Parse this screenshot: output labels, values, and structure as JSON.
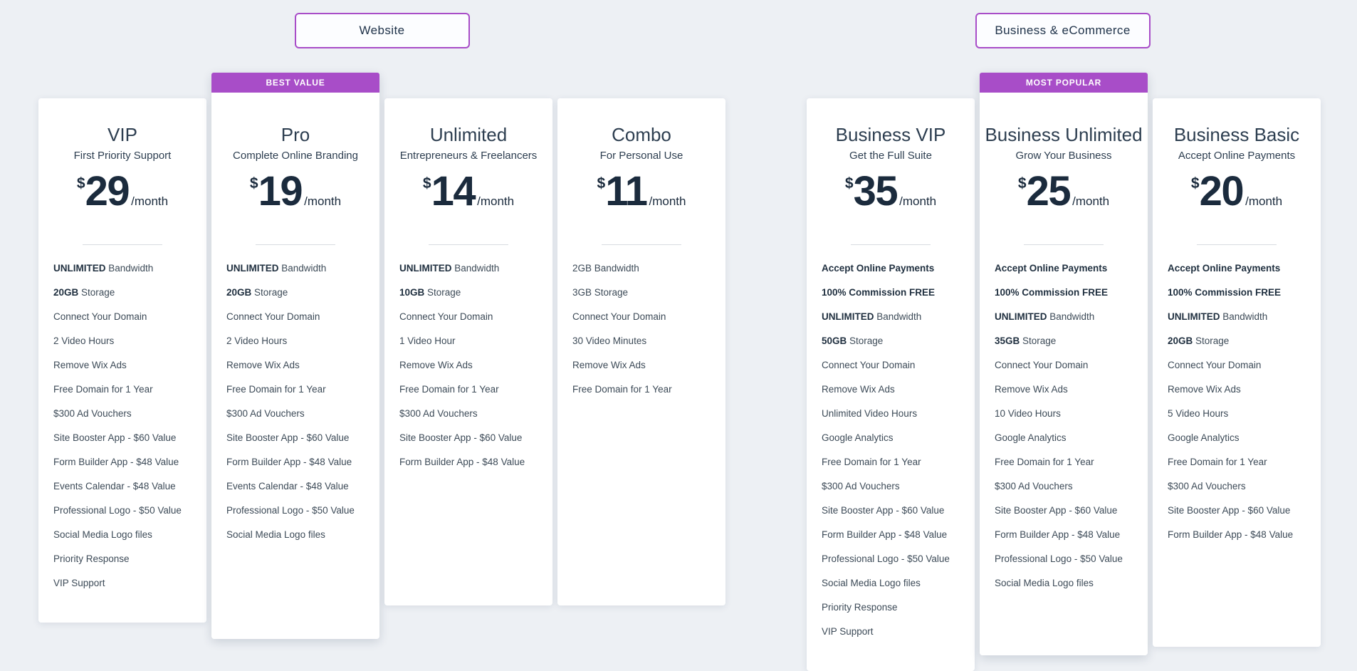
{
  "colors": {
    "accent_purple": "#a84dc8",
    "page_background": "#edf0f4",
    "card_background": "#ffffff",
    "heading_text": "#2d3e50",
    "price_text": "#1b2b3d",
    "feature_text": "#3c4a57",
    "badge_text": "#ffffff"
  },
  "groups": [
    {
      "tab_label": "Website",
      "plans": [
        {
          "name": "VIP",
          "tagline": "First Priority Support",
          "currency": "$",
          "price": "29",
          "period": "/month",
          "featured": false,
          "badge": "",
          "features": [
            {
              "b": "UNLIMITED",
              "t": " Bandwidth"
            },
            {
              "b": "20GB",
              "t": " Storage"
            },
            {
              "t": "Connect Your Domain"
            },
            {
              "t": "2 Video Hours"
            },
            {
              "t": "Remove Wix Ads"
            },
            {
              "t": "Free Domain for 1 Year"
            },
            {
              "t": "$300 Ad Vouchers"
            },
            {
              "t": "Site Booster App - $60 Value"
            },
            {
              "t": "Form Builder App - $48 Value"
            },
            {
              "t": "Events Calendar - $48 Value"
            },
            {
              "t": "Professional Logo - $50 Value"
            },
            {
              "t": "Social Media Logo files"
            },
            {
              "t": "Priority Response"
            },
            {
              "t": "VIP Support"
            }
          ]
        },
        {
          "name": "Pro",
          "tagline": "Complete Online Branding",
          "currency": "$",
          "price": "19",
          "period": "/month",
          "featured": true,
          "badge": "BEST VALUE",
          "features": [
            {
              "b": "UNLIMITED",
              "t": " Bandwidth"
            },
            {
              "b": "20GB",
              "t": " Storage"
            },
            {
              "t": "Connect Your Domain"
            },
            {
              "t": "2 Video Hours"
            },
            {
              "t": "Remove Wix Ads"
            },
            {
              "t": "Free Domain for 1 Year"
            },
            {
              "t": "$300 Ad Vouchers"
            },
            {
              "t": "Site Booster App - $60 Value"
            },
            {
              "t": "Form Builder App - $48 Value"
            },
            {
              "t": "Events Calendar - $48 Value"
            },
            {
              "t": "Professional Logo - $50 Value"
            },
            {
              "t": "Social Media Logo files"
            }
          ]
        },
        {
          "name": "Unlimited",
          "tagline": "Entrepreneurs & Freelancers",
          "currency": "$",
          "price": "14",
          "period": "/month",
          "featured": false,
          "badge": "",
          "features": [
            {
              "b": "UNLIMITED",
              "t": " Bandwidth"
            },
            {
              "b": "10GB",
              "t": " Storage"
            },
            {
              "t": "Connect Your Domain"
            },
            {
              "t": "1 Video Hour"
            },
            {
              "t": "Remove Wix Ads"
            },
            {
              "t": "Free Domain for 1 Year"
            },
            {
              "t": "$300 Ad Vouchers"
            },
            {
              "t": "Site Booster App - $60 Value"
            },
            {
              "t": "Form Builder App - $48 Value"
            }
          ]
        },
        {
          "name": "Combo",
          "tagline": "For Personal Use",
          "currency": "$",
          "price": "11",
          "period": "/month",
          "featured": false,
          "badge": "",
          "features": [
            {
              "t": "2GB Bandwidth"
            },
            {
              "t": "3GB Storage"
            },
            {
              "t": "Connect Your Domain"
            },
            {
              "t": "30 Video Minutes"
            },
            {
              "t": "Remove Wix Ads"
            },
            {
              "t": "Free Domain for 1 Year"
            }
          ]
        }
      ]
    },
    {
      "tab_label": "Business & eCommerce",
      "plans": [
        {
          "name": "Business VIP",
          "tagline": "Get the Full Suite",
          "currency": "$",
          "price": "35",
          "period": "/month",
          "featured": false,
          "badge": "",
          "features": [
            {
              "b": "Accept Online Payments",
              "t": ""
            },
            {
              "b": "100% Commission FREE",
              "t": ""
            },
            {
              "b": "UNLIMITED",
              "t": " Bandwidth"
            },
            {
              "b": "50GB",
              "t": " Storage"
            },
            {
              "t": "Connect Your Domain"
            },
            {
              "t": "Remove Wix Ads"
            },
            {
              "t": "Unlimited Video Hours"
            },
            {
              "t": "Google Analytics"
            },
            {
              "t": "Free Domain for 1 Year"
            },
            {
              "t": "$300 Ad Vouchers"
            },
            {
              "t": "Site Booster App - $60 Value"
            },
            {
              "t": "Form Builder App - $48 Value"
            },
            {
              "t": "Professional Logo - $50 Value"
            },
            {
              "t": "Social Media Logo files"
            },
            {
              "t": "Priority Response"
            },
            {
              "t": "VIP Support"
            }
          ]
        },
        {
          "name": "Business Unlimited",
          "tagline": "Grow Your Business",
          "currency": "$",
          "price": "25",
          "period": "/month",
          "featured": true,
          "badge": "MOST POPULAR",
          "features": [
            {
              "b": "Accept Online Payments",
              "t": ""
            },
            {
              "b": "100% Commission FREE",
              "t": ""
            },
            {
              "b": "UNLIMITED",
              "t": " Bandwidth"
            },
            {
              "b": "35GB",
              "t": " Storage"
            },
            {
              "t": "Connect Your Domain"
            },
            {
              "t": "Remove Wix Ads"
            },
            {
              "t": "10 Video Hours"
            },
            {
              "t": "Google Analytics"
            },
            {
              "t": "Free Domain for 1 Year"
            },
            {
              "t": "$300 Ad Vouchers"
            },
            {
              "t": "Site Booster App - $60 Value"
            },
            {
              "t": "Form Builder App - $48 Value"
            },
            {
              "t": "Professional Logo - $50 Value"
            },
            {
              "t": "Social Media Logo files"
            }
          ]
        },
        {
          "name": "Business Basic",
          "tagline": "Accept Online Payments",
          "currency": "$",
          "price": "20",
          "period": "/month",
          "featured": false,
          "badge": "",
          "features": [
            {
              "b": "Accept Online Payments",
              "t": ""
            },
            {
              "b": "100% Commission FREE",
              "t": ""
            },
            {
              "b": "UNLIMITED",
              "t": " Bandwidth"
            },
            {
              "b": "20GB",
              "t": " Storage"
            },
            {
              "t": "Connect Your Domain"
            },
            {
              "t": "Remove Wix Ads"
            },
            {
              "t": "5 Video Hours"
            },
            {
              "t": "Google Analytics"
            },
            {
              "t": "Free Domain for 1 Year"
            },
            {
              "t": "$300 Ad Vouchers"
            },
            {
              "t": "Site Booster App - $60 Value"
            },
            {
              "t": "Form Builder App - $48 Value"
            }
          ]
        }
      ]
    }
  ]
}
